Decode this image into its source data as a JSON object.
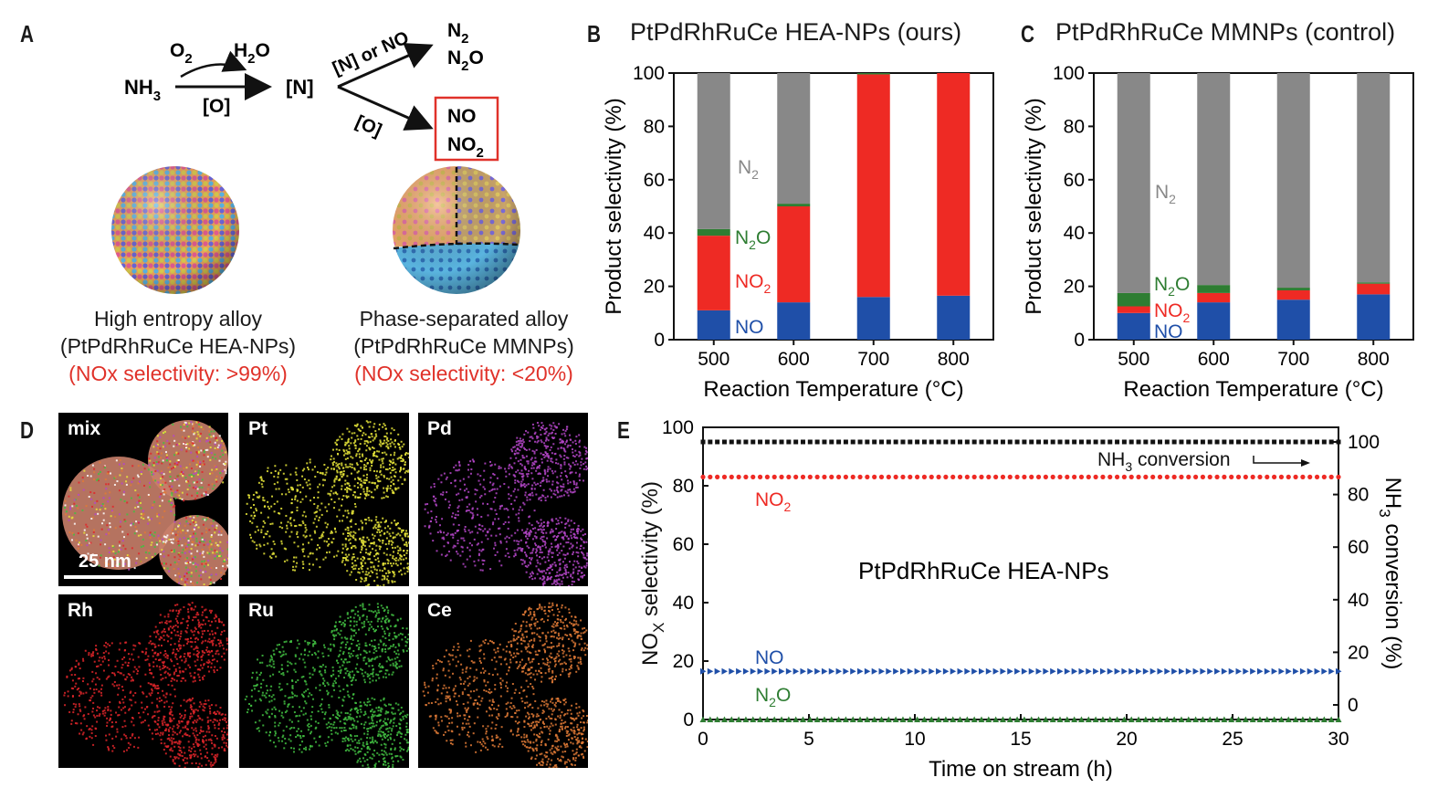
{
  "panels": {
    "A": {
      "letter": "A",
      "reaction": {
        "nh3": "NH3",
        "o2": "O2",
        "h2o": "H2O",
        "o_bracket": "[O]",
        "n_bracket": "[N]",
        "n_or_no": "[N] or NO",
        "o_lower": "[O]",
        "n2": "N2",
        "n2o": "N2O",
        "no": "NO",
        "no2": "NO2"
      },
      "left_caption": {
        "line1": "High entropy alloy",
        "line2": "(PtPdRhRuCe HEA-NPs)",
        "line3": "(NOx selectivity: >99%)"
      },
      "right_caption": {
        "line1": "Phase-separated alloy",
        "line2": "(PtPdRhRuCe MMNPs)",
        "line3": "(NOx selectivity: <20%)"
      }
    },
    "B": {
      "letter": "B",
      "title": "PtPdRhRuCe HEA-NPs (ours)"
    },
    "C": {
      "letter": "C",
      "title": "PtPdRhRuCe MMNPs (control)"
    },
    "D": {
      "letter": "D",
      "tiles": [
        "mix",
        "Pt",
        "Pd",
        "Rh",
        "Ru",
        "Ce"
      ],
      "scale_bar": "25 nm"
    },
    "E": {
      "letter": "E",
      "title": "PtPdRhRuCe HEA-NPs"
    }
  },
  "colors": {
    "n2": "#888888",
    "n2o": "#2e7d32",
    "no2": "#ee2a24",
    "no": "#1f4fa8",
    "conversion": "#111111"
  },
  "chart_data": [
    {
      "id": "B",
      "type": "bar",
      "stacked": true,
      "title": "PtPdRhRuCe HEA-NPs (ours)",
      "xlabel": "Reaction Temperature (°C)",
      "ylabel": "Product selectivity (%)",
      "categories": [
        "500",
        "600",
        "700",
        "800"
      ],
      "ylim": [
        0,
        100
      ],
      "yticks": [
        0,
        20,
        40,
        60,
        80,
        100
      ],
      "series": [
        {
          "name": "NO",
          "values": [
            11,
            14,
            16,
            16.5
          ]
        },
        {
          "name": "NO2",
          "values": [
            28,
            36,
            83.5,
            83.5
          ]
        },
        {
          "name": "N2O",
          "values": [
            2.5,
            1,
            0.5,
            0
          ]
        },
        {
          "name": "N2",
          "values": [
            58.5,
            49,
            0,
            0
          ]
        }
      ],
      "annotations": [
        "N2",
        "N2O",
        "NO2",
        "NO"
      ]
    },
    {
      "id": "C",
      "type": "bar",
      "stacked": true,
      "title": "PtPdRhRuCe MMNPs (control)",
      "xlabel": "Reaction Temperature (°C)",
      "ylabel": "Product selectivity (%)",
      "categories": [
        "500",
        "600",
        "700",
        "800"
      ],
      "ylim": [
        0,
        100
      ],
      "yticks": [
        0,
        20,
        40,
        60,
        80,
        100
      ],
      "series": [
        {
          "name": "NO",
          "values": [
            10,
            14,
            15,
            17
          ]
        },
        {
          "name": "NO2",
          "values": [
            2.5,
            3.5,
            3.5,
            4
          ]
        },
        {
          "name": "N2O",
          "values": [
            5,
            3,
            1,
            0.5
          ]
        },
        {
          "name": "N2",
          "values": [
            82.5,
            79.5,
            80.5,
            78.5
          ]
        }
      ],
      "annotations": [
        "N2",
        "N2O",
        "NO2",
        "NO"
      ]
    },
    {
      "id": "E",
      "type": "scatter",
      "title": "PtPdRhRuCe HEA-NPs",
      "xlabel": "Time on stream (h)",
      "ylabel": "NOx selectivity (%)",
      "y2label": "NH3 conversion (%)",
      "xlim": [
        0,
        30
      ],
      "ylim": [
        0,
        100
      ],
      "y2lim": [
        0,
        100
      ],
      "xticks": [
        0,
        5,
        10,
        15,
        20,
        25,
        30
      ],
      "yticks": [
        0,
        20,
        40,
        60,
        80,
        100
      ],
      "y2ticks": [
        0,
        20,
        40,
        60,
        80,
        100
      ],
      "series": [
        {
          "name": "NH3 conversion",
          "axis": "right",
          "value": 100,
          "marker": "square"
        },
        {
          "name": "NO2",
          "axis": "left",
          "value": 83,
          "marker": "circle"
        },
        {
          "name": "NO",
          "axis": "left",
          "value": 16.5,
          "marker": "triangle-right"
        },
        {
          "name": "N2O",
          "axis": "left",
          "value": 0,
          "marker": "triangle-up"
        }
      ],
      "point_count": 90,
      "annotations": [
        "NH3 conversion",
        "NO2",
        "NO",
        "N2O"
      ]
    }
  ]
}
